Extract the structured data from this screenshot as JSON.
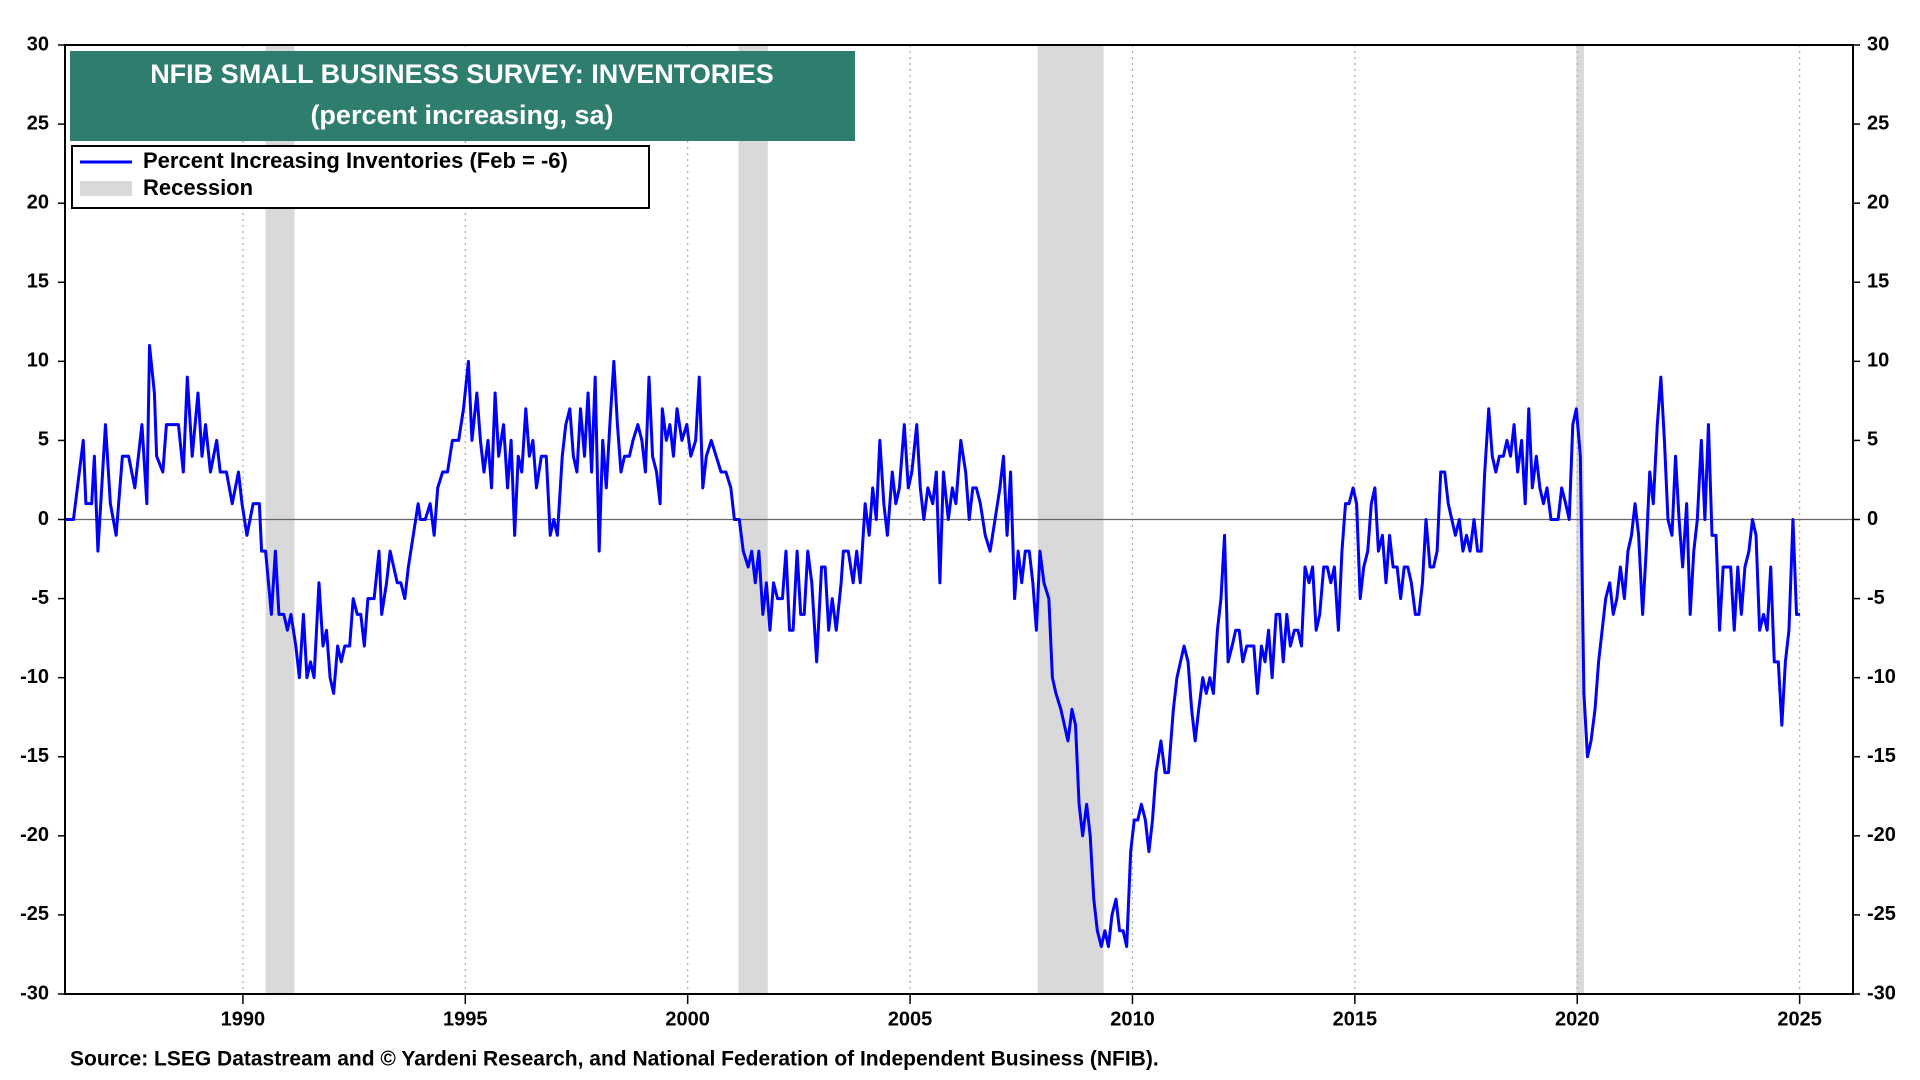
{
  "chart_data": {
    "type": "line",
    "title": "NFIB SMALL BUSINESS SURVEY:  INVENTORIES",
    "subtitle": "(percent increasing, sa)",
    "source": "Source: LSEG Datastream and © Yardeni Research, and National Federation of Independent Business (NFIB).",
    "xlim": [
      1986,
      2026.2
    ],
    "xticks": [
      1990,
      1995,
      2000,
      2005,
      2010,
      2015,
      2020,
      2025
    ],
    "ylim": [
      -30,
      30
    ],
    "yticks": [
      -30,
      -25,
      -20,
      -15,
      -10,
      -5,
      0,
      5,
      10,
      15,
      20,
      25,
      30
    ],
    "y2lim": [
      -30,
      30
    ],
    "y2ticks": [
      -30,
      -25,
      -20,
      -15,
      -10,
      -5,
      0,
      5,
      10,
      15,
      20,
      25,
      30
    ],
    "grid": "x",
    "zero_line": true,
    "legend": "top-left",
    "recessions": {
      "name": "Recession",
      "color": "#d9d9d9",
      "spans": [
        [
          1990.51,
          1991.16
        ],
        [
          2001.14,
          2001.8
        ],
        [
          2007.87,
          2009.35
        ],
        [
          2019.98,
          2020.15
        ]
      ]
    },
    "x": [
      1986.0,
      1986.19,
      1986.41,
      1986.47,
      1986.6,
      1986.66,
      1986.74,
      1986.91,
      1987.02,
      1987.15,
      1987.29,
      1987.43,
      1987.57,
      1987.73,
      1987.84,
      1987.9,
      1988.01,
      1988.06,
      1988.2,
      1988.28,
      1988.55,
      1988.66,
      1988.75,
      1988.86,
      1988.99,
      1989.08,
      1989.16,
      1989.27,
      1989.41,
      1989.49,
      1989.63,
      1989.76,
      1989.9,
      1989.98,
      1990.09,
      1990.23,
      1990.37,
      1990.42,
      1990.51,
      1990.64,
      1990.73,
      1990.81,
      1990.92,
      1991.0,
      1991.08,
      1991.19,
      1991.27,
      1991.36,
      1991.44,
      1991.52,
      1991.6,
      1991.71,
      1991.8,
      1991.88,
      1991.96,
      1992.04,
      1992.13,
      1992.21,
      1992.29,
      1992.4,
      1992.48,
      1992.57,
      1992.65,
      1992.73,
      1992.81,
      1992.95,
      1993.06,
      1993.12,
      1993.23,
      1993.31,
      1993.39,
      1993.47,
      1993.55,
      1993.64,
      1993.72,
      1993.83,
      1993.94,
      1993.99,
      1994.1,
      1994.21,
      1994.3,
      1994.38,
      1994.49,
      1994.6,
      1994.71,
      1994.85,
      1994.96,
      1995.07,
      1995.15,
      1995.26,
      1995.34,
      1995.42,
      1995.51,
      1995.59,
      1995.67,
      1995.75,
      1995.86,
      1995.95,
      1996.03,
      1996.11,
      1996.19,
      1996.27,
      1996.36,
      1996.44,
      1996.52,
      1996.6,
      1996.71,
      1996.82,
      1996.91,
      1996.99,
      1997.07,
      1997.18,
      1997.26,
      1997.35,
      1997.43,
      1997.51,
      1997.59,
      1997.68,
      1997.76,
      1997.84,
      1997.92,
      1998.01,
      1998.09,
      1998.17,
      1998.25,
      1998.34,
      1998.42,
      1998.5,
      1998.58,
      1998.69,
      1998.77,
      1998.88,
      1998.97,
      1999.05,
      1999.13,
      1999.21,
      1999.3,
      1999.38,
      1999.43,
      1999.52,
      1999.6,
      1999.68,
      1999.76,
      1999.87,
      1999.98,
      2000.07,
      2000.18,
      2000.26,
      2000.34,
      2000.42,
      2000.53,
      2000.64,
      2000.75,
      2000.86,
      2000.97,
      2001.05,
      2001.16,
      2001.25,
      2001.36,
      2001.44,
      2001.52,
      2001.6,
      2001.69,
      2001.77,
      2001.85,
      2001.93,
      2002.02,
      2002.13,
      2002.21,
      2002.29,
      2002.37,
      2002.46,
      2002.54,
      2002.62,
      2002.7,
      2002.79,
      2002.9,
      2003.01,
      2003.09,
      2003.17,
      2003.25,
      2003.34,
      2003.45,
      2003.5,
      2003.61,
      2003.72,
      2003.8,
      2003.88,
      2003.99,
      2004.08,
      2004.16,
      2004.24,
      2004.32,
      2004.41,
      2004.49,
      2004.6,
      2004.68,
      2004.76,
      2004.87,
      2004.96,
      2005.04,
      2005.15,
      2005.23,
      2005.31,
      2005.4,
      2005.51,
      2005.59,
      2005.67,
      2005.75,
      2005.86,
      2005.95,
      2006.03,
      2006.14,
      2006.25,
      2006.33,
      2006.41,
      2006.49,
      2006.58,
      2006.69,
      2006.8,
      2006.91,
      2007.02,
      2007.1,
      2007.18,
      2007.26,
      2007.35,
      2007.43,
      2007.51,
      2007.59,
      2007.68,
      2007.76,
      2007.84,
      2007.92,
      2008.01,
      2008.12,
      2008.2,
      2008.28,
      2008.39,
      2008.47,
      2008.55,
      2008.64,
      2008.72,
      2008.8,
      2008.88,
      2008.97,
      2009.05,
      2009.13,
      2009.21,
      2009.3,
      2009.38,
      2009.46,
      2009.54,
      2009.63,
      2009.71,
      2009.79,
      2009.87,
      2009.96,
      2010.04,
      2010.12,
      2010.2,
      2010.29,
      2010.37,
      2010.45,
      2010.53,
      2010.64,
      2010.73,
      2010.81,
      2010.92,
      2011.0,
      2011.08,
      2011.16,
      2011.25,
      2011.33,
      2011.41,
      2011.49,
      2011.58,
      2011.66,
      2011.74,
      2011.82,
      2011.91,
      2011.99,
      2012.07,
      2012.15,
      2012.24,
      2012.32,
      2012.4,
      2012.48,
      2012.57,
      2012.65,
      2012.73,
      2012.81,
      2012.9,
      2012.98,
      2013.06,
      2013.14,
      2013.23,
      2013.31,
      2013.39,
      2013.47,
      2013.55,
      2013.64,
      2013.72,
      2013.8,
      2013.88,
      2013.97,
      2014.05,
      2014.13,
      2014.21,
      2014.3,
      2014.38,
      2014.46,
      2014.54,
      2014.63,
      2014.71,
      2014.79,
      2014.87,
      2014.96,
      2015.04,
      2015.12,
      2015.2,
      2015.29,
      2015.37,
      2015.45,
      2015.53,
      2015.62,
      2015.7,
      2015.78,
      2015.86,
      2015.95,
      2016.03,
      2016.11,
      2016.19,
      2016.27,
      2016.36,
      2016.44,
      2016.52,
      2016.6,
      2016.69,
      2016.77,
      2016.85,
      2016.93,
      2017.02,
      2017.1,
      2017.18,
      2017.26,
      2017.35,
      2017.43,
      2017.51,
      2017.59,
      2017.68,
      2017.76,
      2017.84,
      2017.92,
      2018.01,
      2018.09,
      2018.17,
      2018.25,
      2018.34,
      2018.42,
      2018.5,
      2018.58,
      2018.66,
      2018.75,
      2018.83,
      2018.91,
      2018.99,
      2019.08,
      2019.16,
      2019.24,
      2019.32,
      2019.41,
      2019.49,
      2019.57,
      2019.65,
      2019.74,
      2019.82,
      2019.9,
      2019.98,
      2020.07,
      2020.15,
      2020.23,
      2020.31,
      2020.4,
      2020.48,
      2020.56,
      2020.64,
      2020.73,
      2020.81,
      2020.89,
      2020.97,
      2021.06,
      2021.14,
      2021.22,
      2021.3,
      2021.38,
      2021.47,
      2021.55,
      2021.63,
      2021.71,
      2021.8,
      2021.88,
      2021.96,
      2022.04,
      2022.13,
      2022.21,
      2022.29,
      2022.37,
      2022.46,
      2022.54,
      2022.62,
      2022.7,
      2022.79,
      2022.87,
      2022.95,
      2023.03,
      2023.12,
      2023.2,
      2023.28,
      2023.36,
      2023.45,
      2023.53,
      2023.61,
      2023.69,
      2023.77,
      2023.86,
      2023.94,
      2024.02,
      2024.1,
      2024.19,
      2024.27,
      2024.35,
      2024.43,
      2024.52,
      2024.6,
      2024.68,
      2024.76,
      2024.85,
      2024.93,
      2025.01
    ],
    "series": [
      {
        "name": "Percent Increasing Inventories (Feb = -6)",
        "color": "#0000ff",
        "values": [
          0,
          0,
          5,
          1,
          1,
          4,
          -2,
          6,
          1,
          -1,
          4,
          4,
          2,
          6,
          1,
          11,
          8,
          4,
          3,
          6,
          6,
          3,
          9,
          4,
          8,
          4,
          6,
          3,
          5,
          3,
          3,
          1,
          3,
          1,
          -1,
          1,
          1,
          -2,
          -2,
          -6,
          -2,
          -6,
          -6,
          -7,
          -6,
          -8,
          -10,
          -6,
          -10,
          -9,
          -10,
          -4,
          -8,
          -7,
          -10,
          -11,
          -8,
          -9,
          -8,
          -8,
          -5,
          -6,
          -6,
          -8,
          -5,
          -5,
          -2,
          -6,
          -4,
          -2,
          -3,
          -4,
          -4,
          -5,
          -3,
          -1,
          1,
          0,
          0,
          1,
          -1,
          2,
          3,
          3,
          5,
          5,
          7,
          10,
          5,
          8,
          5,
          3,
          5,
          2,
          8,
          4,
          6,
          2,
          5,
          -1,
          4,
          3,
          7,
          4,
          5,
          2,
          4,
          4,
          -1,
          0,
          -1,
          4,
          6,
          7,
          4,
          3,
          7,
          4,
          8,
          3,
          9,
          -2,
          5,
          2,
          6,
          10,
          6,
          3,
          4,
          4,
          5,
          6,
          5,
          3,
          9,
          4,
          3,
          1,
          7,
          5,
          6,
          4,
          7,
          5,
          6,
          4,
          5,
          9,
          2,
          4,
          5,
          4,
          3,
          3,
          2,
          0,
          0,
          -2,
          -3,
          -2,
          -4,
          -2,
          -6,
          -4,
          -7,
          -4,
          -5,
          -5,
          -2,
          -7,
          -7,
          -2,
          -6,
          -6,
          -2,
          -4,
          -9,
          -3,
          -3,
          -7,
          -5,
          -7,
          -4,
          -2,
          -2,
          -4,
          -2,
          -4,
          1,
          -1,
          2,
          0,
          5,
          1,
          -1,
          3,
          1,
          2,
          6,
          2,
          3,
          6,
          2,
          0,
          2,
          1,
          3,
          -4,
          3,
          0,
          2,
          1,
          5,
          3,
          0,
          2,
          2,
          1,
          -1,
          -2,
          0,
          2,
          4,
          -1,
          3,
          -5,
          -2,
          -4,
          -2,
          -2,
          -4,
          -7,
          -2,
          -4,
          -5,
          -10,
          -11,
          -12,
          -13,
          -14,
          -12,
          -13,
          -18,
          -20,
          -18,
          -20,
          -24,
          -26,
          -27,
          -26,
          -27,
          -25,
          -24,
          -26,
          -26,
          -27,
          -21,
          -19,
          -19,
          -18,
          -19,
          -21,
          -19,
          -16,
          -14,
          -16,
          -16,
          -12,
          -10,
          -9,
          -8,
          -9,
          -12,
          -14,
          -12,
          -10,
          -11,
          -10,
          -11,
          -7,
          -5,
          -1,
          -9,
          -8,
          -7,
          -7,
          -9,
          -8,
          -8,
          -8,
          -11,
          -8,
          -9,
          -7,
          -10,
          -6,
          -6,
          -9,
          -6,
          -8,
          -7,
          -7,
          -8,
          -3,
          -4,
          -3,
          -7,
          -6,
          -3,
          -3,
          -4,
          -3,
          -7,
          -2,
          1,
          1,
          2,
          1,
          -5,
          -3,
          -2,
          1,
          2,
          -2,
          -1,
          -4,
          -1,
          -3,
          -3,
          -5,
          -3,
          -3,
          -4,
          -6,
          -6,
          -4,
          0,
          -3,
          -3,
          -2,
          3,
          3,
          1,
          0,
          -1,
          0,
          -2,
          -1,
          -2,
          0,
          -2,
          -2,
          3,
          7,
          4,
          3,
          4,
          4,
          5,
          4,
          6,
          3,
          5,
          1,
          7,
          2,
          4,
          2,
          1,
          2,
          0,
          0,
          0,
          2,
          1,
          0,
          6,
          7,
          4,
          -11,
          -15,
          -14,
          -12,
          -9,
          -7,
          -5,
          -4,
          -6,
          -5,
          -3,
          -5,
          -2,
          -1,
          1,
          -1,
          -6,
          -2,
          3,
          1,
          6,
          9,
          5,
          0,
          -1,
          4,
          0,
          -3,
          1,
          -6,
          -2,
          0,
          5,
          0,
          6,
          -1,
          -1,
          -7,
          -3,
          -3,
          -3,
          -7,
          -3,
          -6,
          -3,
          -2,
          0,
          -1,
          -7,
          -6,
          -7,
          -3,
          -9,
          -9,
          -13,
          -9,
          -7,
          0,
          -6,
          -6
        ]
      }
    ]
  }
}
